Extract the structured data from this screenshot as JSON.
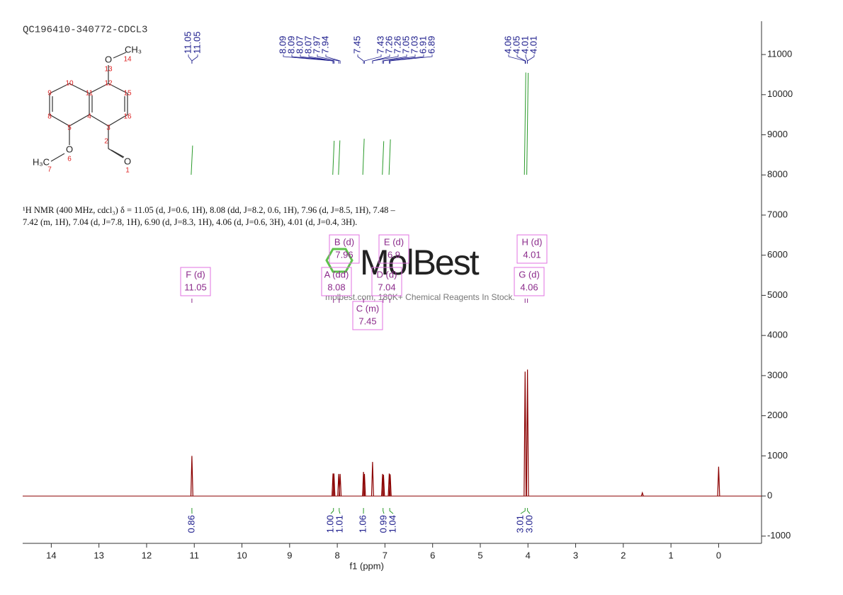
{
  "chart_data": {
    "type": "nmr",
    "title": "QC196410-340772-CDCL3",
    "xlabel": "f1 (ppm)",
    "xlim": [
      14.6,
      -0.9
    ],
    "xticks": [
      14,
      13,
      12,
      11,
      10,
      9,
      8,
      7,
      6,
      5,
      4,
      3,
      2,
      1,
      0
    ],
    "ylim": [
      -1180,
      11830
    ],
    "yticks": [
      -1000,
      0,
      1000,
      2000,
      3000,
      4000,
      5000,
      6000,
      7000,
      8000,
      9000,
      10000,
      11000
    ],
    "color": "#8b0000",
    "peaks": {
      "ppm": [
        11.05,
        8.09,
        8.07,
        7.97,
        7.94,
        7.45,
        7.43,
        7.26,
        7.05,
        7.03,
        6.91,
        6.89,
        4.06,
        4.01,
        1.6,
        0
      ],
      "intensity": [
        1000,
        560,
        560,
        550,
        550,
        600,
        550,
        850,
        550,
        530,
        560,
        540,
        3100,
        3150,
        80,
        730
      ]
    },
    "peak_labels": [
      11.05,
      11.05,
      8.09,
      8.09,
      8.07,
      8.07,
      7.97,
      7.94,
      7.45,
      7.43,
      7.26,
      7.26,
      7.05,
      7.03,
      6.91,
      6.89,
      4.06,
      4.05,
      4.01,
      4.01
    ],
    "integrals": {
      "ppm": [
        11.05,
        8.08,
        7.96,
        7.45,
        7.04,
        6.9,
        4.06,
        4.01
      ],
      "values": [
        0.86,
        1,
        1.01,
        1.06,
        0.99,
        1.04,
        3.01,
        3
      ],
      "value_labels": [
        "0.86",
        "1.00",
        "1.01",
        "1.06",
        "0.99",
        "1.04",
        "3.01",
        "3.00"
      ]
    },
    "annotations": [
      {
        "label": "F (d)",
        "shift": 11.05
      },
      {
        "label": "B (d)",
        "shift": 7.96
      },
      {
        "label": "E (d)",
        "shift": 6.9
      },
      {
        "label": "A (dd)",
        "shift": 8.08
      },
      {
        "label": "D (d)",
        "shift": 7.04
      },
      {
        "label": "C (m)",
        "shift": 7.45
      },
      {
        "label": "H (d)",
        "shift": 4.01
      },
      {
        "label": "G (d)",
        "shift": 4.06
      }
    ],
    "description": [
      "¹H NMR (400 MHz, cdcl₃) δ = 11.05 (d, J=0.6, 1H), 8.08 (dd, J=8.2, 0.6, 1H), 7.96 (d, J=8.5, 1H), 7.48 –",
      "7.42 (m, 1H), 7.04 (d, J=7.8, 1H), 6.90 (d, J=8.3, 1H), 4.06 (d, J=0.6, 3H), 4.01 (d, J=0.4, 3H)."
    ],
    "watermark": {
      "logo": "MolBest",
      "tagline": "molbest.com, 180K+ Chemical Reagents In Stock."
    },
    "structure": {
      "atoms": [
        "O",
        "CH₃",
        "O",
        "O",
        "H₃C"
      ],
      "numbers": [
        1,
        2,
        3,
        4,
        5,
        6,
        7,
        8,
        9,
        10,
        11,
        12,
        13,
        14,
        15,
        16
      ]
    }
  }
}
